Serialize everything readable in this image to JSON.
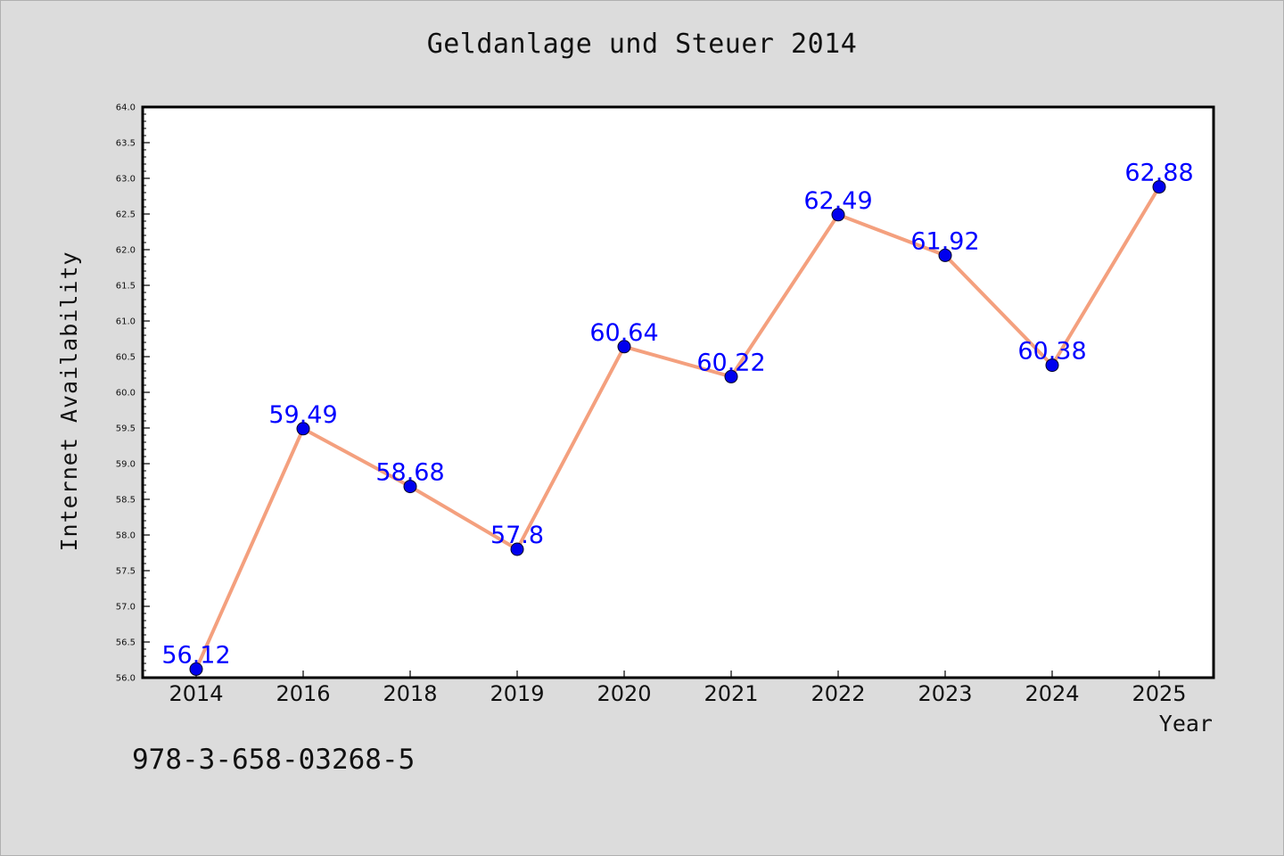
{
  "chart_data": {
    "type": "line",
    "title": "Geldanlage und Steuer 2014",
    "xlabel": "Year",
    "ylabel": "Internet Availability",
    "categories": [
      "2014",
      "2016",
      "2018",
      "2019",
      "2020",
      "2021",
      "2022",
      "2023",
      "2024",
      "2025"
    ],
    "series": [
      {
        "values": [
          56.12,
          59.49,
          58.68,
          57.8,
          60.64,
          60.22,
          62.49,
          61.92,
          60.38,
          62.88
        ],
        "labels": [
          "56.12",
          "59.49",
          "58.68",
          "57.8",
          "60.64",
          "60.22",
          "62.49",
          "61.92",
          "60.38",
          "62.88"
        ]
      }
    ],
    "ylim": [
      56.0,
      64.0
    ],
    "yticks": [
      "56.0",
      "56.5",
      "57.0",
      "57.5",
      "58.0",
      "58.5",
      "59.0",
      "59.5",
      "60.0",
      "60.5",
      "61.0",
      "61.5",
      "62.0",
      "62.5",
      "63.0",
      "63.5",
      "64.0"
    ],
    "grid": false,
    "colors": {
      "line": "#f4a07e",
      "marker": "#0000ee",
      "label": "#0000ff",
      "plot_bg": "#ffffff",
      "figure_bg": "#dcdcdc"
    }
  },
  "footer_text": "978-3-658-03268-5"
}
